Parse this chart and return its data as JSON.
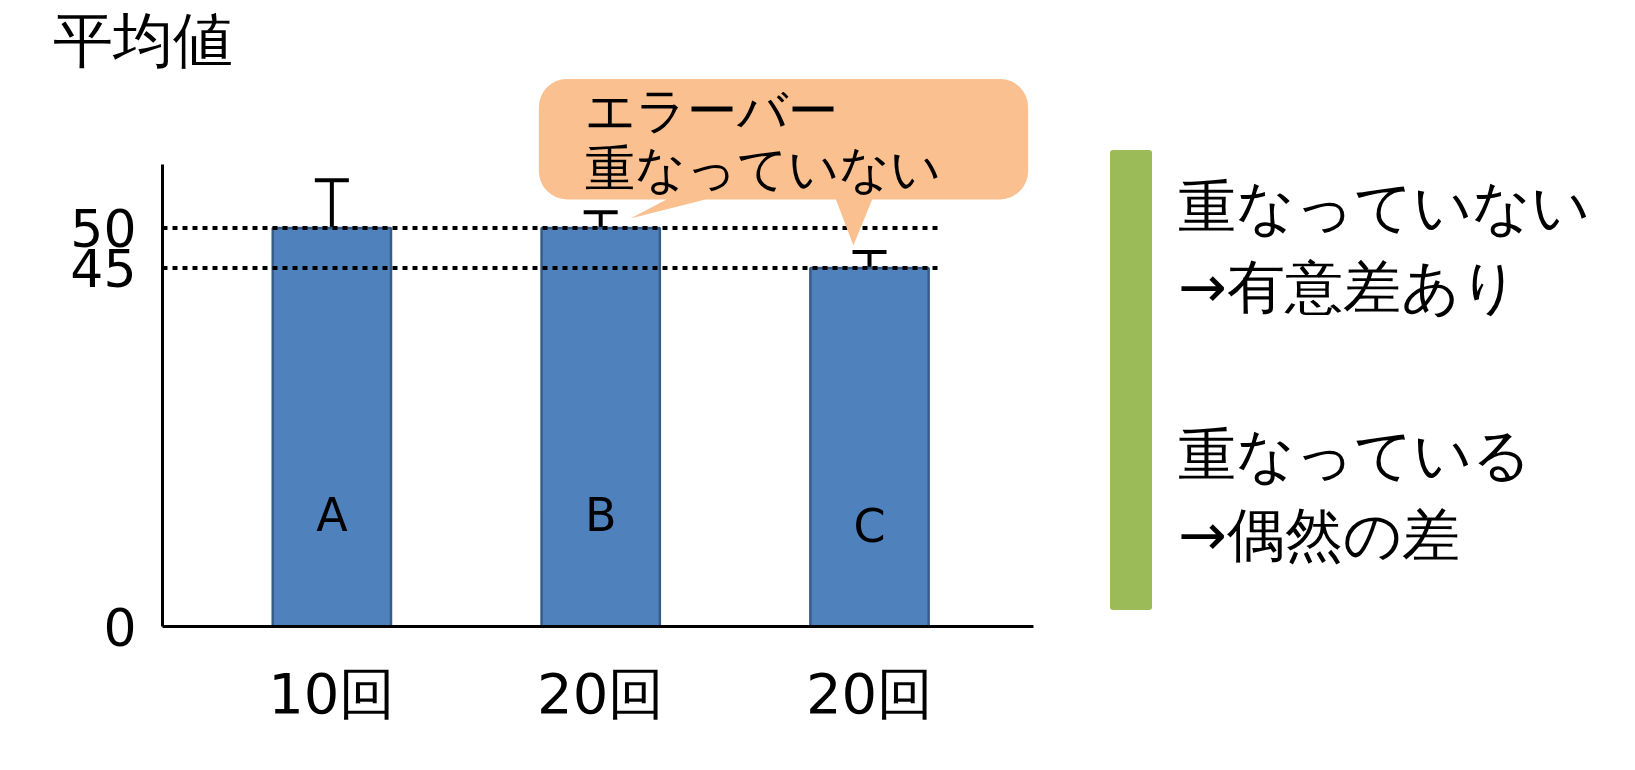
{
  "chart_data": {
    "type": "bar",
    "ylabel": "平均値",
    "categories": [
      "10回",
      "20回",
      "20回"
    ],
    "values": [
      50,
      50,
      45
    ],
    "errors": [
      6,
      2,
      2
    ],
    "value_labels": [
      "A",
      "B",
      "C"
    ],
    "color": "#4f81bd",
    "ylim": [
      0,
      58
    ],
    "yticks": [
      0,
      45,
      50
    ],
    "ref_lines": [
      {
        "axis": "y",
        "value": 50,
        "line_style": "dotted",
        "color": "#000000"
      },
      {
        "axis": "y",
        "value": 45,
        "line_style": "dotted",
        "color": "#000000"
      }
    ],
    "annotations": [
      "エラーバー",
      "重なっていない",
      "重なっていない\n→有意差あり",
      "重なっている\n→偶然の差"
    ]
  }
}
